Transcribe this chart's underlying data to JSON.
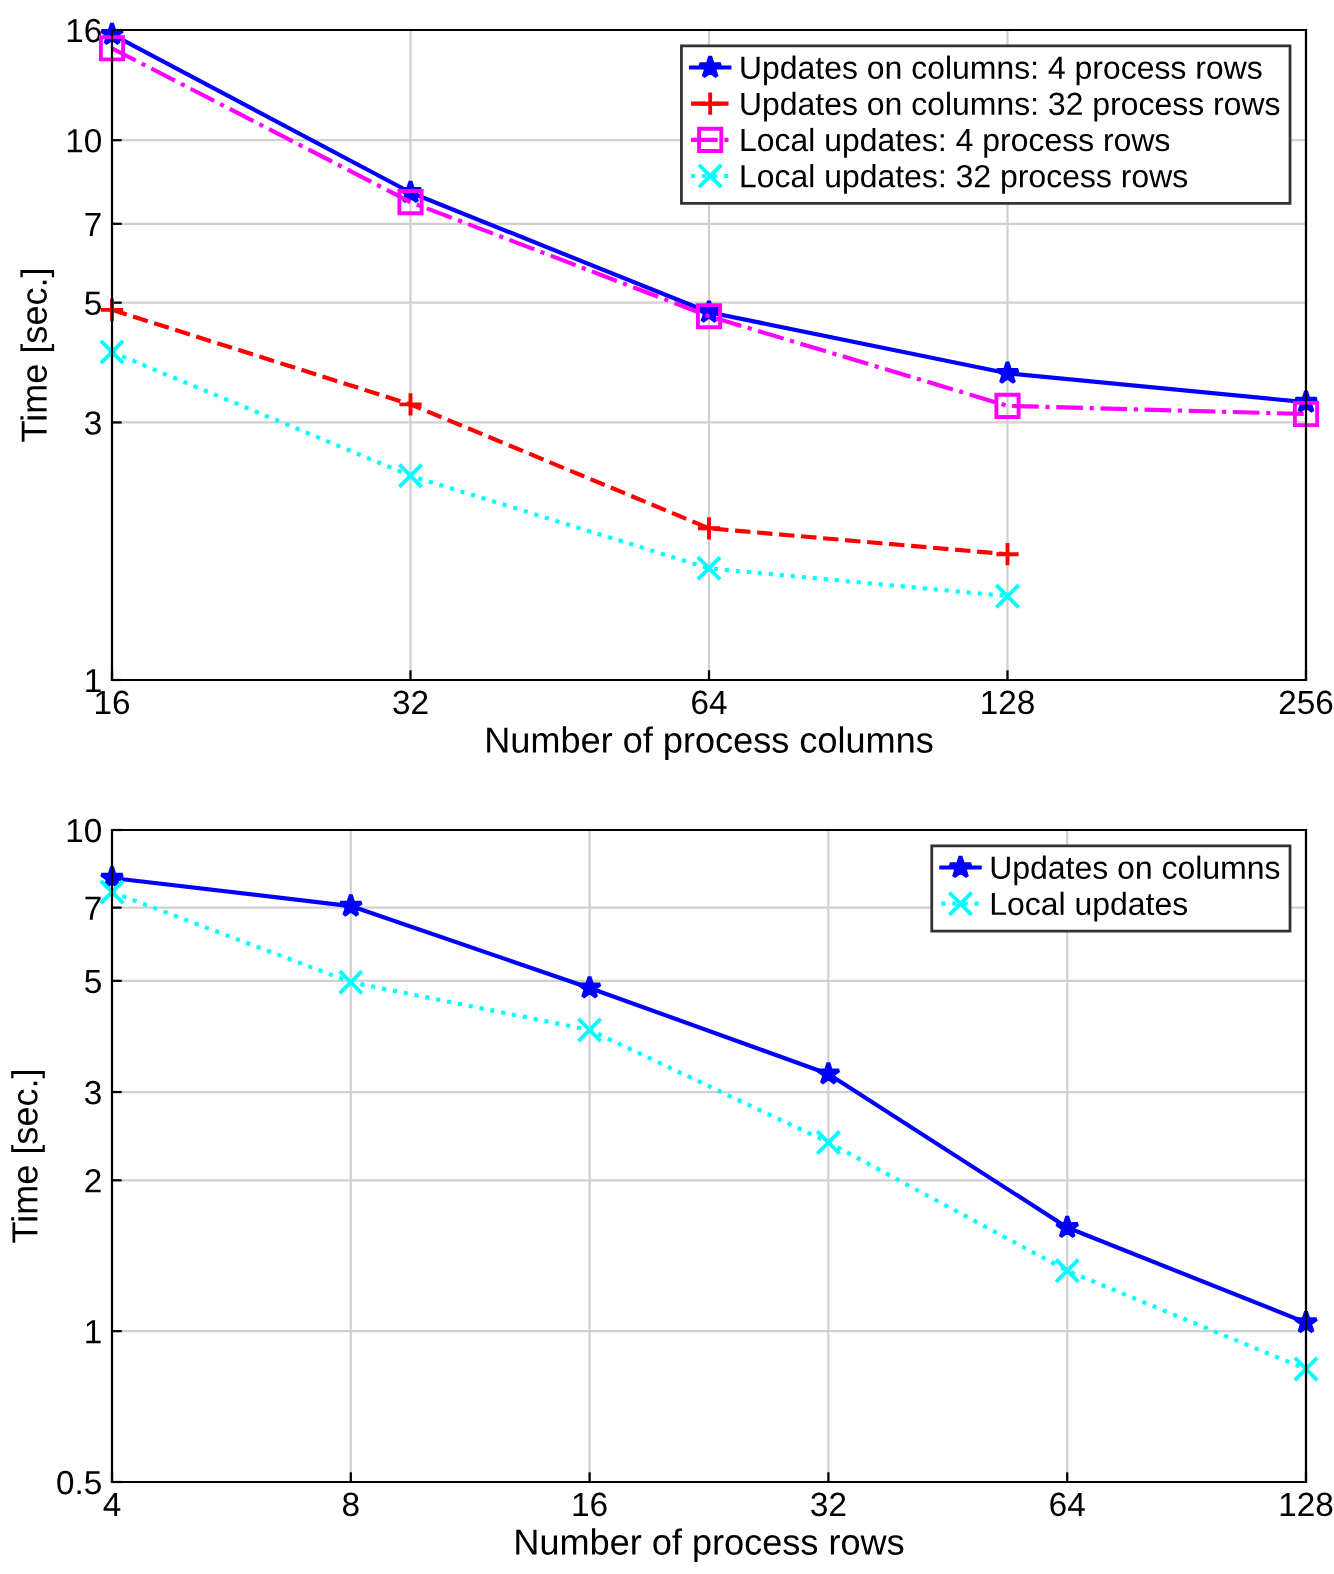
{
  "chart_data": [
    {
      "type": "line",
      "xlabel": "Number of process columns",
      "ylabel": "Time [sec.]",
      "log": "xy",
      "grid": true,
      "legend": "top right",
      "xlim": [
        16,
        256
      ],
      "xticks": [
        16,
        32,
        64,
        128,
        256
      ],
      "ylim": [
        1,
        16
      ],
      "yticks": [
        1,
        3,
        5,
        7,
        10,
        16
      ],
      "series": [
        {
          "name": "Updates on columns: 4 process rows",
          "color": "#0000ff",
          "marker": "star",
          "line_style": "solid",
          "x": [
            16,
            32,
            64,
            128,
            256
          ],
          "values": [
            15.7,
            8.0,
            4.8,
            3.7,
            3.27
          ]
        },
        {
          "name": "Updates on columns: 32 process rows",
          "color": "#ff0000",
          "marker": "plus",
          "line_style": "dashed",
          "x": [
            16,
            32,
            64,
            128
          ],
          "values": [
            4.85,
            3.24,
            1.91,
            1.71
          ]
        },
        {
          "name": "Local updates: 4 process rows",
          "color": "#ff00ff",
          "marker": "square",
          "line_style": "dashdot",
          "x": [
            16,
            32,
            64,
            128,
            256
          ],
          "values": [
            14.8,
            7.68,
            4.72,
            3.22,
            3.11
          ]
        },
        {
          "name": "Local updates: 32 process rows",
          "color": "#00ffff",
          "marker": "x",
          "line_style": "dotted",
          "x": [
            16,
            32,
            64,
            128
          ],
          "values": [
            4.05,
            2.39,
            1.61,
            1.43
          ]
        }
      ]
    },
    {
      "type": "line",
      "xlabel": "Number of process rows",
      "ylabel": "Time [sec.]",
      "log": "xy",
      "grid": true,
      "legend": "top right",
      "xlim": [
        4,
        128
      ],
      "xticks": [
        4,
        8,
        16,
        32,
        64,
        128
      ],
      "ylim": [
        0.5,
        10
      ],
      "yticks": [
        0.5,
        1,
        2,
        3,
        5,
        7,
        10
      ],
      "series": [
        {
          "name": "Updates on columns",
          "color": "#0000ff",
          "marker": "star",
          "line_style": "solid",
          "x": [
            4,
            8,
            16,
            32,
            64,
            128
          ],
          "values": [
            8.02,
            7.05,
            4.84,
            3.26,
            1.61,
            1.04
          ]
        },
        {
          "name": "Local updates",
          "color": "#00ffff",
          "marker": "x",
          "line_style": "dotted",
          "x": [
            4,
            8,
            16,
            32,
            64,
            128
          ],
          "values": [
            7.52,
            4.97,
            3.99,
            2.38,
            1.32,
            0.84
          ]
        }
      ]
    }
  ]
}
